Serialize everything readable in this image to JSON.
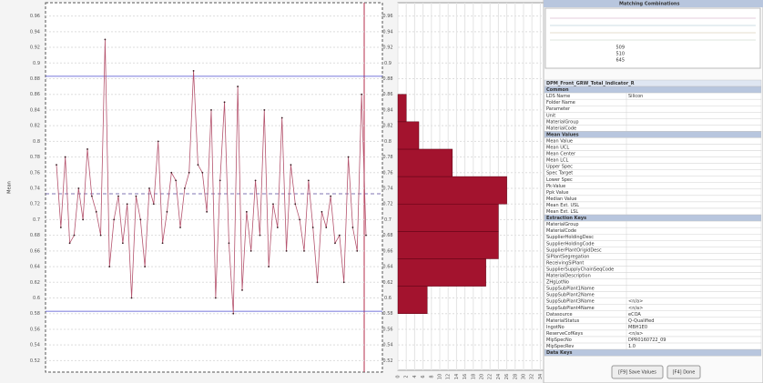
{
  "chart_data": [
    {
      "type": "line",
      "y_label": "Mean",
      "color": "#b5546e",
      "marker_color": "#3a1a22",
      "values": [
        0.77,
        0.69,
        0.78,
        0.67,
        0.68,
        0.74,
        0.7,
        0.79,
        0.73,
        0.71,
        0.68,
        0.93,
        0.64,
        0.7,
        0.73,
        0.67,
        0.72,
        0.6,
        0.73,
        0.7,
        0.64,
        0.74,
        0.72,
        0.8,
        0.67,
        0.71,
        0.76,
        0.75,
        0.69,
        0.74,
        0.76,
        0.89,
        0.77,
        0.76,
        0.71,
        0.84,
        0.6,
        0.75,
        0.85,
        0.67,
        0.58,
        0.87,
        0.61,
        0.71,
        0.66,
        0.75,
        0.68,
        0.84,
        0.64,
        0.72,
        0.69,
        0.83,
        0.66,
        0.77,
        0.72,
        0.7,
        0.66,
        0.75,
        0.69,
        0.62,
        0.71,
        0.69,
        0.73,
        0.67,
        0.68,
        0.62,
        0.78,
        0.69,
        0.66,
        0.86,
        0.68
      ],
      "reference_lines": [
        {
          "value": 0.883,
          "color": "#4a4acf",
          "dashed": false
        },
        {
          "value": 0.733,
          "color": "#5a4a9a",
          "dashed": true
        },
        {
          "value": 0.583,
          "color": "#4a4acf",
          "dashed": false
        }
      ],
      "ylim": [
        0.51,
        0.97
      ],
      "yticks": [
        0.52,
        0.54,
        0.56,
        0.58,
        0.6,
        0.62,
        0.64,
        0.66,
        0.68,
        0.7,
        0.72,
        0.74,
        0.76,
        0.78,
        0.8,
        0.82,
        0.84,
        0.86,
        0.88,
        0.9,
        0.92,
        0.94,
        0.96
      ],
      "grid": true
    },
    {
      "type": "histogram",
      "orientation": "horizontal",
      "color": "#a3132e",
      "bins": [
        0.58,
        0.615,
        0.65,
        0.685,
        0.72,
        0.755,
        0.79,
        0.825,
        0.86
      ],
      "counts": [
        7,
        21,
        24,
        24,
        26,
        13,
        5,
        2
      ],
      "ylim": [
        0.51,
        0.97
      ],
      "yticks": [
        0.52,
        0.54,
        0.56,
        0.58,
        0.6,
        0.62,
        0.64,
        0.66,
        0.68,
        0.7,
        0.72,
        0.74,
        0.76,
        0.78,
        0.8,
        0.82,
        0.84,
        0.86,
        0.88,
        0.9,
        0.92,
        0.94,
        0.96
      ],
      "xlim": [
        0,
        35
      ],
      "xticks": [
        0,
        2,
        4,
        6,
        8,
        10,
        12,
        14,
        16,
        18,
        20,
        22,
        24,
        26,
        28,
        30,
        32,
        34
      ],
      "grid": true
    }
  ],
  "panel": {
    "matching": {
      "title": "Matching Combinations",
      "items": [
        "509",
        "510",
        "645"
      ]
    },
    "table": {
      "title": "DPM_Front_GRW_Total_Indicator_R",
      "sections": [
        {
          "title": "Common",
          "rows": [
            {
              "label": "LDS Name",
              "value": "Silicon"
            },
            {
              "label": "Folder Name"
            },
            {
              "label": "Parameter"
            },
            {
              "label": "Unit"
            },
            {
              "label": "MaterialGroup"
            },
            {
              "label": "MaterialCode"
            }
          ]
        },
        {
          "title": "Mean Values",
          "rows": [
            {
              "label": "Mean Value"
            },
            {
              "label": "Mean UCL"
            },
            {
              "label": "Mean Center"
            },
            {
              "label": "Mean LCL"
            },
            {
              "label": "Upper Spec"
            },
            {
              "label": "Spec Target"
            },
            {
              "label": "Lower Spec"
            },
            {
              "label": "Pk-Value"
            },
            {
              "label": "Ppk Value"
            },
            {
              "label": "Median Value"
            },
            {
              "label": "Mean Ext. USL"
            },
            {
              "label": "Mean Ext. LSL"
            }
          ]
        },
        {
          "title": "Extraction Keys",
          "rows": [
            {
              "label": "MaterialGroup"
            },
            {
              "label": "MaterialCode"
            },
            {
              "label": "SupplierHoldingDesc"
            },
            {
              "label": "SupplierHoldingCode"
            },
            {
              "label": "SupplierPlantOrigidDesc"
            },
            {
              "label": "SiPlantSegregation"
            },
            {
              "label": "ReceivingSiPlant"
            },
            {
              "label": "SupplierSupplyChainSeqCode"
            },
            {
              "label": "MaterialDescription"
            },
            {
              "label": "ZHgLotNo"
            },
            {
              "label": "SuppSubPlant1Name"
            },
            {
              "label": "SuppSubPlant2Name"
            },
            {
              "label": "SuppSubPlant3Name",
              "value": "<n/a>"
            },
            {
              "label": "SuppSubPlant4Name",
              "value": "<n/a>"
            },
            {
              "label": "Datasource",
              "value": "eCOA"
            },
            {
              "label": "MaterialStatus",
              "value": "Q-Qualified"
            },
            {
              "label": "IngotNo",
              "value": "MBH1E0"
            },
            {
              "label": "ReserveCofKeys",
              "value": "<n/a>"
            },
            {
              "label": "MipSpecNo",
              "value": "DPR0160722_09"
            },
            {
              "label": "MipSpecRev",
              "value": "1.0"
            }
          ]
        },
        {
          "title": "Data Keys",
          "rows": []
        }
      ]
    },
    "buttons": [
      "[F9] Save Values",
      "[F4] Done"
    ]
  }
}
